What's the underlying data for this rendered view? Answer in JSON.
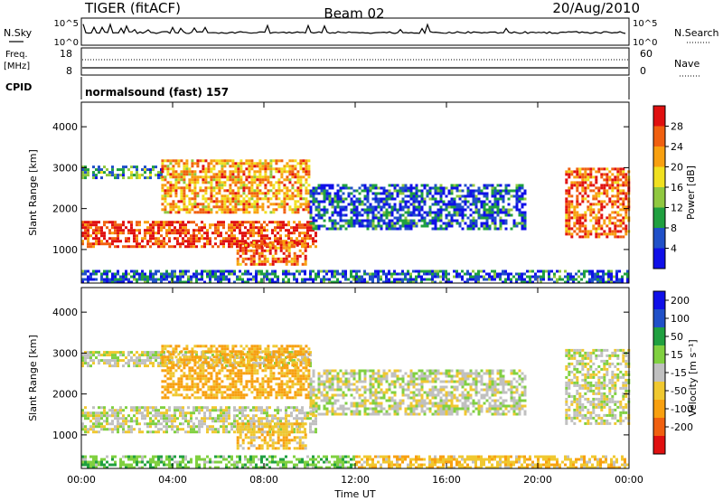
{
  "header": {
    "radar": "TIGER (fitACF)",
    "beam": "Beam 02",
    "date": "20/Aug/2010"
  },
  "top_panels": {
    "nsky_label": "N.Sky",
    "nsky_tick_hi": "10^5",
    "nsky_tick_lo": "10^0",
    "nsearch_label": "N.Search",
    "nsearch_tick_hi": "10^5",
    "nsearch_tick_lo": "10^0",
    "freq_label_1": "Freq.",
    "freq_label_2": "[MHz]",
    "freq_tick_hi": "18",
    "freq_tick_lo": "8",
    "nave_label": "Nave",
    "nave_tick_hi": "60",
    "nave_tick_lo": "0",
    "cpid_label": "CPID",
    "cpid_value": "normalsound (fast) 157"
  },
  "colors": {
    "power": [
      "#1010e8",
      "#2050c8",
      "#20a040",
      "#90c840",
      "#f0e020",
      "#f8a010",
      "#f06010",
      "#e01010"
    ],
    "velocity": [
      "#e01010",
      "#f06010",
      "#f8a010",
      "#f0c830",
      "#c0c0c0",
      "#80d040",
      "#20a040",
      "#2050c8",
      "#1010e8"
    ]
  },
  "chart_data": [
    {
      "type": "heatmap",
      "title": "",
      "xlabel": "",
      "ylabel": "Slant Range [km]",
      "x_ticks": [
        "00:00",
        "04:00",
        "08:00",
        "12:00",
        "16:00",
        "20:00",
        "00:00"
      ],
      "xlim_hours": [
        0,
        24
      ],
      "y_ticks": [
        1000,
        2000,
        3000,
        4000
      ],
      "ylim": [
        180,
        4600
      ],
      "colorbar": {
        "label": "Power [dB]",
        "ticks": [
          4,
          8,
          12,
          16,
          20,
          24,
          28
        ],
        "range": [
          0,
          32
        ]
      },
      "regions": [
        {
          "t0": 0.0,
          "t1": 10.3,
          "r0": 1050,
          "r1": 1700,
          "level": 28
        },
        {
          "t0": 0.0,
          "t1": 3.5,
          "r0": 2750,
          "r1": 3050,
          "level": 10
        },
        {
          "t0": 3.5,
          "t1": 10.0,
          "r0": 1900,
          "r1": 3200,
          "level": 22
        },
        {
          "t0": 6.8,
          "t1": 9.8,
          "r0": 650,
          "r1": 1200,
          "level": 26
        },
        {
          "t0": 10.0,
          "t1": 19.5,
          "r0": 1500,
          "r1": 2600,
          "level": 6
        },
        {
          "t0": 21.2,
          "t1": 24.0,
          "r0": 1300,
          "r1": 3000,
          "level": 26
        },
        {
          "t0": 0.0,
          "t1": 24.0,
          "r0": 200,
          "r1": 500,
          "level": 6
        }
      ]
    },
    {
      "type": "heatmap",
      "title": "",
      "xlabel": "Time UT",
      "ylabel": "Slant Range [km]",
      "x_ticks": [
        "00:00",
        "04:00",
        "08:00",
        "12:00",
        "16:00",
        "20:00",
        "00:00"
      ],
      "xlim_hours": [
        0,
        24
      ],
      "y_ticks": [
        1000,
        2000,
        3000,
        4000
      ],
      "ylim": [
        180,
        4600
      ],
      "colorbar": {
        "label": "Velocity [m s⁻¹]",
        "ticks": [
          200,
          100,
          50,
          15,
          -15,
          -50,
          -100,
          -200
        ],
        "range": [
          -250,
          250
        ]
      },
      "regions": [
        {
          "t0": 0.0,
          "t1": 10.3,
          "r0": 1050,
          "r1": 1700,
          "level": 0
        },
        {
          "t0": 0.0,
          "t1": 10.0,
          "r0": 2700,
          "r1": 3050,
          "level": 0
        },
        {
          "t0": 3.5,
          "t1": 10.0,
          "r0": 1900,
          "r1": 3200,
          "level": -60
        },
        {
          "t0": 6.8,
          "t1": 9.8,
          "r0": 650,
          "r1": 1300,
          "level": -40
        },
        {
          "t0": 10.0,
          "t1": 19.5,
          "r0": 1500,
          "r1": 2600,
          "level": 0
        },
        {
          "t0": 21.2,
          "t1": 24.0,
          "r0": 1300,
          "r1": 3100,
          "level": 0
        },
        {
          "t0": 0.0,
          "t1": 12.0,
          "r0": 200,
          "r1": 500,
          "level": 40
        },
        {
          "t0": 12.0,
          "t1": 24.0,
          "r0": 200,
          "r1": 500,
          "level": -40
        }
      ]
    }
  ]
}
